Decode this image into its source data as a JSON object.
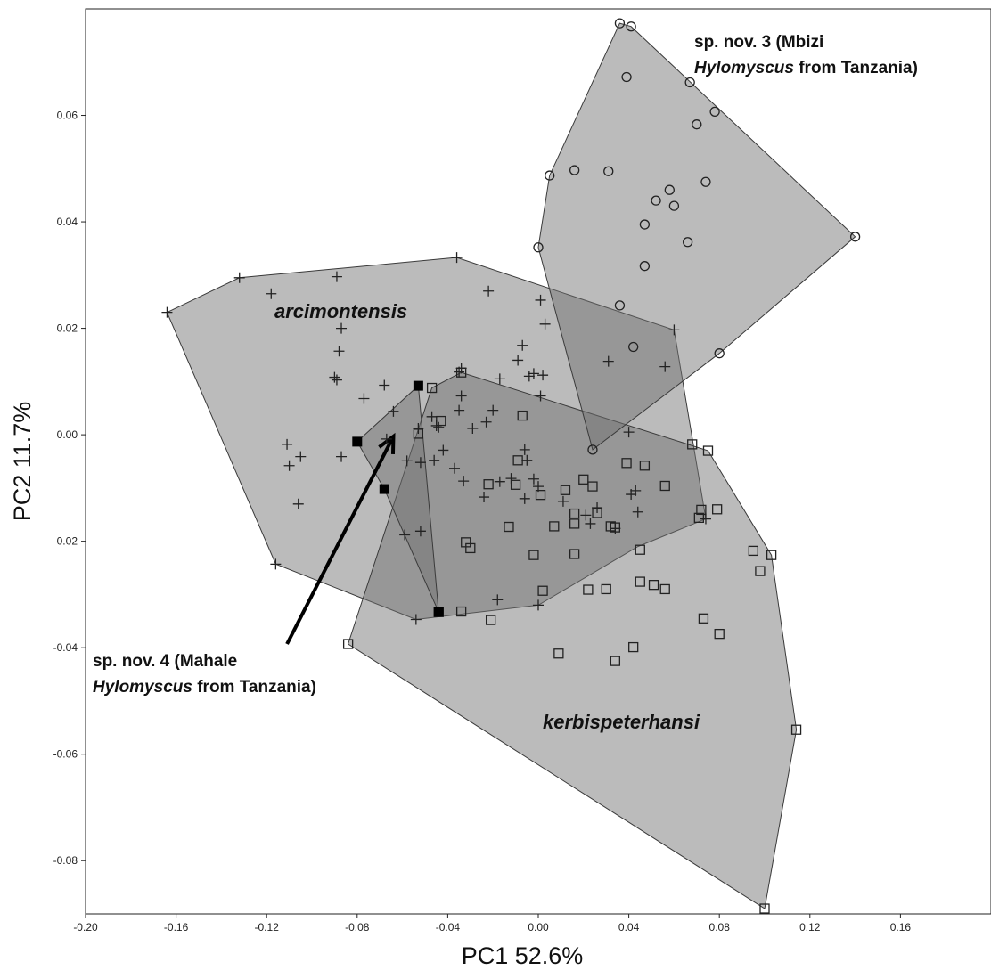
{
  "chart_data": {
    "type": "scatter",
    "title": "",
    "xlabel": "PC1 52.6%",
    "ylabel": "PC2 11.7%",
    "xlim": [
      -0.2,
      0.2
    ],
    "ylim": [
      -0.09,
      0.08
    ],
    "grid": false,
    "x_ticks": [
      -0.2,
      -0.16,
      -0.12,
      -0.08,
      -0.04,
      0.0,
      0.04,
      0.08,
      0.12,
      0.16
    ],
    "x_tick_labels": [
      "-0.20",
      "-0.16",
      "-0.12",
      "-0.08",
      "-0.04",
      "0.00",
      "0.04",
      "0.08",
      "0.12",
      "0.16"
    ],
    "y_ticks": [
      -0.08,
      -0.06,
      -0.04,
      -0.02,
      0.0,
      0.02,
      0.04,
      0.06
    ],
    "y_tick_labels": [
      "-0.08",
      "-0.06",
      "-0.04",
      "-0.02",
      "0.00",
      "0.02",
      "0.04",
      "0.06"
    ],
    "series": [
      {
        "name": "arcimontensis",
        "marker": "plus",
        "points": [
          [
            -0.164,
            0.023
          ],
          [
            -0.132,
            0.0295
          ],
          [
            -0.118,
            0.0265
          ],
          [
            -0.089,
            0.0297
          ],
          [
            -0.036,
            0.0333
          ],
          [
            -0.022,
            0.027
          ],
          [
            0.001,
            0.0253
          ],
          [
            -0.087,
            0.02
          ],
          [
            -0.088,
            0.0157
          ],
          [
            -0.09,
            0.0108
          ],
          [
            -0.089,
            0.0103
          ],
          [
            -0.077,
            0.0068
          ],
          [
            -0.068,
            0.0093
          ],
          [
            -0.064,
            0.0044
          ],
          [
            0.003,
            0.0208
          ],
          [
            -0.007,
            0.0168
          ],
          [
            -0.009,
            0.014
          ],
          [
            -0.017,
            0.0105
          ],
          [
            -0.002,
            0.0115
          ],
          [
            0.002,
            0.0112
          ],
          [
            -0.004,
            0.011
          ],
          [
            0.001,
            0.0073
          ],
          [
            -0.034,
            0.0125
          ],
          [
            -0.035,
            0.0118
          ],
          [
            -0.034,
            0.0073
          ],
          [
            -0.035,
            0.0046
          ],
          [
            -0.02,
            0.0046
          ],
          [
            -0.023,
            0.0024
          ],
          [
            -0.029,
            0.0012
          ],
          [
            -0.045,
            0.0017
          ],
          [
            -0.044,
            0.0014
          ],
          [
            -0.053,
            0.0012
          ],
          [
            -0.067,
            -0.0008
          ],
          [
            -0.058,
            -0.0049
          ],
          [
            -0.052,
            -0.0052
          ],
          [
            -0.042,
            -0.0029
          ],
          [
            -0.037,
            -0.0063
          ],
          [
            -0.033,
            -0.0087
          ],
          [
            -0.111,
            -0.0018
          ],
          [
            -0.11,
            -0.0058
          ],
          [
            -0.105,
            -0.0041
          ],
          [
            -0.106,
            -0.013
          ],
          [
            -0.087,
            -0.0041
          ],
          [
            -0.046,
            -0.0048
          ],
          [
            -0.047,
            0.0034
          ],
          [
            -0.024,
            -0.0117
          ],
          [
            -0.017,
            -0.0088
          ],
          [
            -0.005,
            -0.0048
          ],
          [
            -0.002,
            -0.0083
          ],
          [
            0.0,
            -0.0097
          ],
          [
            -0.006,
            -0.012
          ],
          [
            -0.012,
            -0.0082
          ],
          [
            -0.006,
            -0.0028
          ],
          [
            0.011,
            -0.0125
          ],
          [
            0.021,
            -0.0151
          ],
          [
            0.026,
            -0.0137
          ],
          [
            0.041,
            -0.0112
          ],
          [
            0.043,
            -0.0105
          ],
          [
            0.044,
            -0.0145
          ],
          [
            0.023,
            -0.0167
          ],
          [
            0.034,
            -0.0176
          ],
          [
            0.04,
            0.0005
          ],
          [
            0.031,
            0.0138
          ],
          [
            0.056,
            0.0128
          ],
          [
            0.06,
            0.0197
          ],
          [
            0.074,
            -0.0158
          ],
          [
            -0.116,
            -0.0243
          ],
          [
            -0.054,
            -0.0347
          ],
          [
            -0.059,
            -0.0188
          ],
          [
            -0.052,
            -0.0181
          ],
          [
            -0.018,
            -0.031
          ],
          [
            0.0,
            -0.032
          ]
        ]
      },
      {
        "name": "kerbispeterhansi",
        "marker": "open-square",
        "points": [
          [
            -0.084,
            -0.0393
          ],
          [
            -0.044,
            -0.0333
          ],
          [
            -0.047,
            0.0088
          ],
          [
            -0.034,
            0.0117
          ],
          [
            -0.043,
            0.0026
          ],
          [
            -0.053,
            0.0002
          ],
          [
            -0.007,
            0.0036
          ],
          [
            -0.009,
            -0.0048
          ],
          [
            -0.01,
            -0.0094
          ],
          [
            -0.022,
            -0.0093
          ],
          [
            -0.013,
            -0.0173
          ],
          [
            -0.002,
            -0.0226
          ],
          [
            0.002,
            -0.0293
          ],
          [
            -0.032,
            -0.0202
          ],
          [
            -0.03,
            -0.0213
          ],
          [
            -0.034,
            -0.0332
          ],
          [
            -0.021,
            -0.0348
          ],
          [
            0.007,
            -0.0172
          ],
          [
            0.012,
            -0.0104
          ],
          [
            0.016,
            -0.0148
          ],
          [
            0.016,
            -0.0167
          ],
          [
            0.02,
            -0.0084
          ],
          [
            0.016,
            -0.0224
          ],
          [
            0.024,
            -0.0097
          ],
          [
            0.026,
            -0.0147
          ],
          [
            0.034,
            -0.0174
          ],
          [
            0.032,
            -0.0172
          ],
          [
            0.039,
            -0.0053
          ],
          [
            0.047,
            -0.0058
          ],
          [
            0.056,
            -0.0096
          ],
          [
            0.068,
            -0.0018
          ],
          [
            0.075,
            -0.003
          ],
          [
            0.072,
            -0.0141
          ],
          [
            0.071,
            -0.0156
          ],
          [
            0.079,
            -0.014
          ],
          [
            0.095,
            -0.0218
          ],
          [
            0.103,
            -0.0226
          ],
          [
            0.098,
            -0.0256
          ],
          [
            0.045,
            -0.0216
          ],
          [
            0.03,
            -0.029
          ],
          [
            0.022,
            -0.0291
          ],
          [
            0.051,
            -0.0282
          ],
          [
            0.045,
            -0.0276
          ],
          [
            0.056,
            -0.029
          ],
          [
            0.073,
            -0.0345
          ],
          [
            0.08,
            -0.0374
          ],
          [
            0.042,
            -0.0399
          ],
          [
            0.009,
            -0.0411
          ],
          [
            0.034,
            -0.0425
          ],
          [
            0.114,
            -0.0554
          ],
          [
            0.1,
            -0.089
          ],
          [
            0.001,
            -0.0113
          ]
        ]
      },
      {
        "name": "sp. nov. 3 (Mbizi Hylomyscus from Tanzania)",
        "marker": "open-circle",
        "points": [
          [
            0.036,
            0.0773
          ],
          [
            0.041,
            0.0767
          ],
          [
            0.039,
            0.0672
          ],
          [
            0.067,
            0.0662
          ],
          [
            0.078,
            0.0607
          ],
          [
            0.07,
            0.0583
          ],
          [
            0.005,
            0.0487
          ],
          [
            0.016,
            0.0497
          ],
          [
            0.031,
            0.0495
          ],
          [
            0.074,
            0.0475
          ],
          [
            0.058,
            0.046
          ],
          [
            0.052,
            0.044
          ],
          [
            0.06,
            0.043
          ],
          [
            0.047,
            0.0395
          ],
          [
            0.066,
            0.0362
          ],
          [
            0.14,
            0.0372
          ],
          [
            0.0,
            0.0352
          ],
          [
            0.047,
            0.0317
          ],
          [
            0.036,
            0.0243
          ],
          [
            0.042,
            0.0165
          ],
          [
            0.08,
            0.0153
          ],
          [
            0.024,
            -0.0028
          ]
        ]
      },
      {
        "name": "sp. nov. 4 (Mahale Hylomyscus from Tanzania)",
        "marker": "filled-square",
        "points": [
          [
            -0.053,
            0.0092
          ],
          [
            -0.08,
            -0.0013
          ],
          [
            -0.068,
            -0.0102
          ],
          [
            -0.044,
            -0.0333
          ]
        ]
      }
    ],
    "hulls": [
      {
        "name": "arcimontensis",
        "points": [
          [
            -0.164,
            0.023
          ],
          [
            -0.132,
            0.0295
          ],
          [
            -0.036,
            0.0333
          ],
          [
            0.06,
            0.0197
          ],
          [
            0.074,
            -0.0158
          ],
          [
            0.044,
            -0.021
          ],
          [
            0.0,
            -0.032
          ],
          [
            -0.054,
            -0.0347
          ],
          [
            -0.116,
            -0.0243
          ]
        ]
      },
      {
        "name": "kerbispeterhansi",
        "points": [
          [
            -0.084,
            -0.0393
          ],
          [
            -0.047,
            0.0088
          ],
          [
            -0.034,
            0.0117
          ],
          [
            0.075,
            -0.003
          ],
          [
            0.103,
            -0.0226
          ],
          [
            0.114,
            -0.0554
          ],
          [
            0.1,
            -0.089
          ]
        ]
      },
      {
        "name": "sp. nov. 3",
        "points": [
          [
            0.036,
            0.0773
          ],
          [
            0.041,
            0.0767
          ],
          [
            0.14,
            0.0372
          ],
          [
            0.08,
            0.0153
          ],
          [
            0.024,
            -0.0028
          ],
          [
            0.0,
            0.0352
          ],
          [
            0.005,
            0.0487
          ]
        ]
      },
      {
        "name": "sp. nov. 4",
        "points": [
          [
            -0.053,
            0.0092
          ],
          [
            -0.044,
            -0.0333
          ],
          [
            -0.068,
            -0.0102
          ],
          [
            -0.08,
            -0.0013
          ]
        ]
      }
    ],
    "annotations": {
      "arcimontensis": "arcimontensis",
      "kerbispeterhansi": "kerbispeterhansi",
      "mbizi_line1": "sp. nov. 3 (Mbizi",
      "mbizi_line2_italic": "Hylomyscus",
      "mbizi_line2_rest": " from Tanzania)",
      "mahale_line1": "sp. nov. 4 (Mahale",
      "mahale_line2_italic": "Hylomyscus",
      "mahale_line2_rest": " from Tanzania)"
    },
    "arrow": {
      "from": [
        -0.111,
        -0.0393
      ],
      "to": [
        -0.064,
        -0.0003
      ]
    },
    "colors": {
      "hull_fill": "#707070",
      "hull_stroke": "#3a3a3a",
      "background": "#ffffff",
      "marker": "#222222"
    }
  }
}
